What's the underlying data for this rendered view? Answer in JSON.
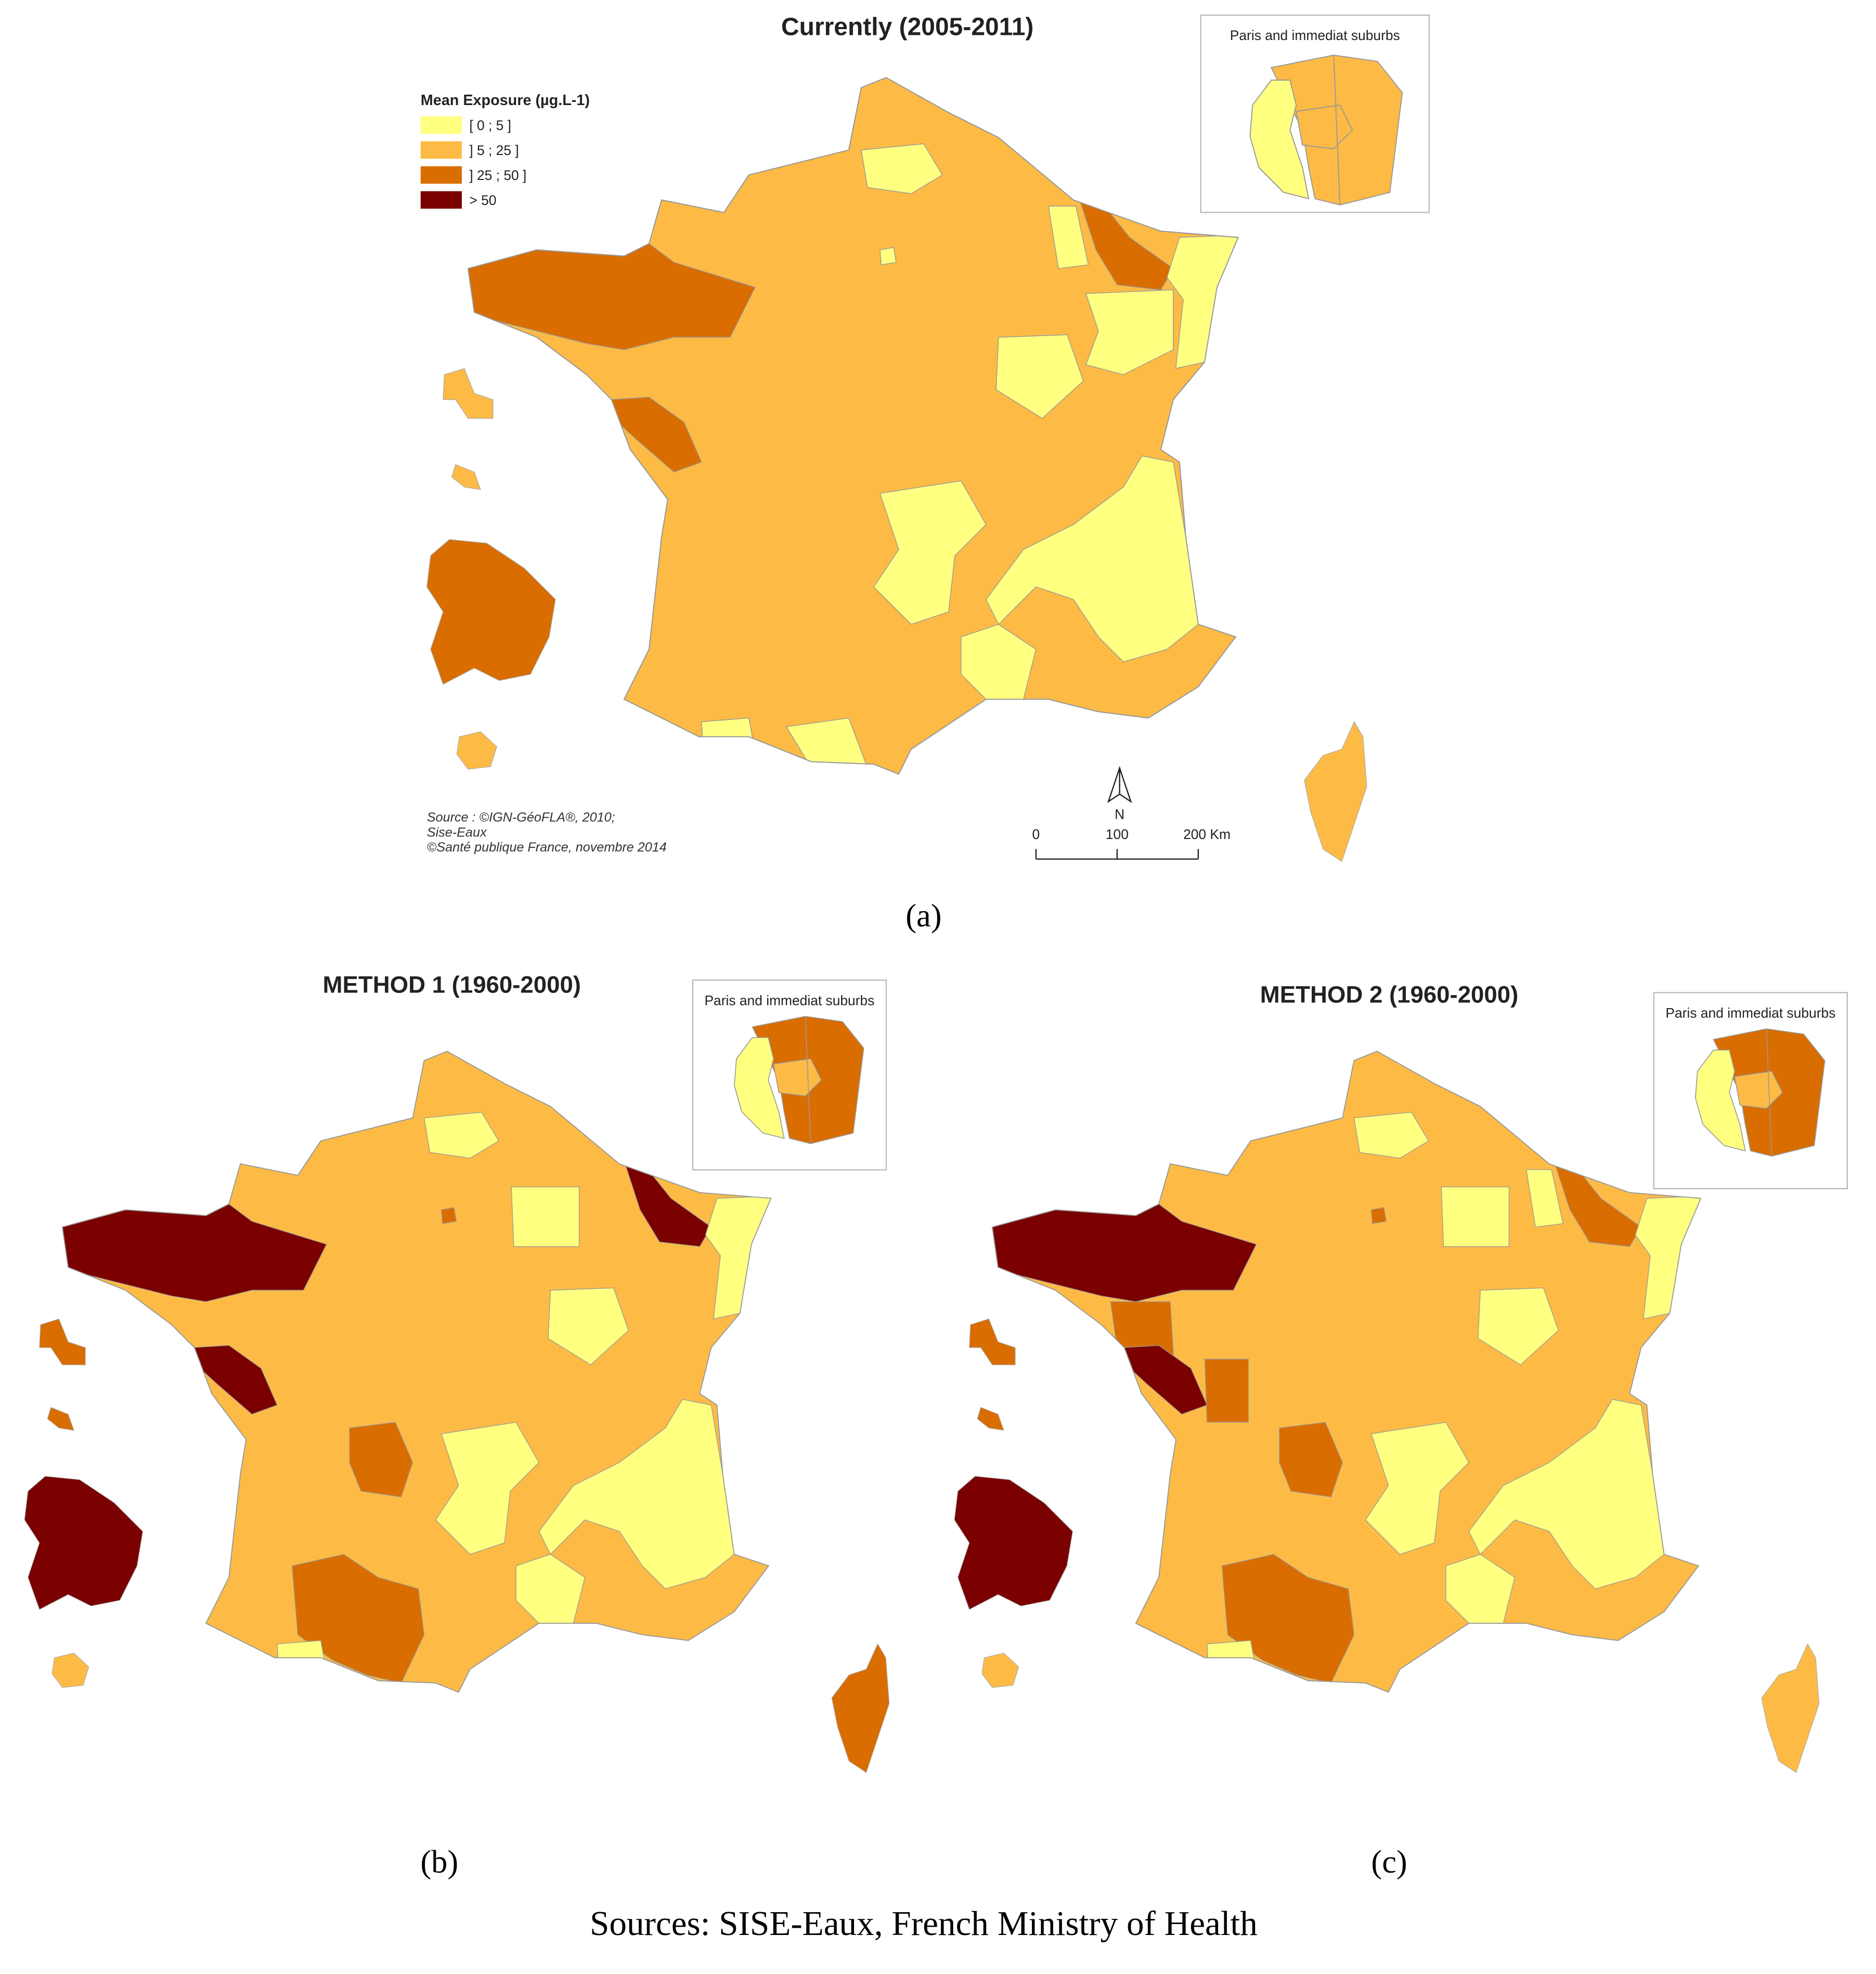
{
  "maps": [
    {
      "title": "Currently (2005-2011)",
      "caption": "(a)",
      "inset_title": "Paris and immediat suburbs"
    },
    {
      "title": "METHOD 1 (1960-2000)",
      "caption": "(b)",
      "inset_title": "Paris and immediat suburbs"
    },
    {
      "title": "METHOD 2 (1960-2000)",
      "caption": "(c)",
      "inset_title": "Paris and immediat suburbs"
    }
  ],
  "legend": {
    "title": "Mean Exposure (µg.L-1)",
    "items": [
      {
        "label": "[ 0 ; 5 ]",
        "color": "#ffff80"
      },
      {
        "label": "] 5 ; 25 ]",
        "color": "#fdbb45"
      },
      {
        "label": "] 25 ; 50 ]",
        "color": "#d96d00"
      },
      {
        "label": "> 50",
        "color": "#7b0000"
      }
    ]
  },
  "source": [
    "Source : ©IGN-GéoFLA®, 2010;",
    "Sise-Eaux",
    "©Santé publique France, novembre 2014"
  ],
  "north": "N",
  "scale_bar": [
    "0",
    "100",
    "200 Km"
  ],
  "footer": "Sources: SISE-Eaux, French Ministry of Health"
}
